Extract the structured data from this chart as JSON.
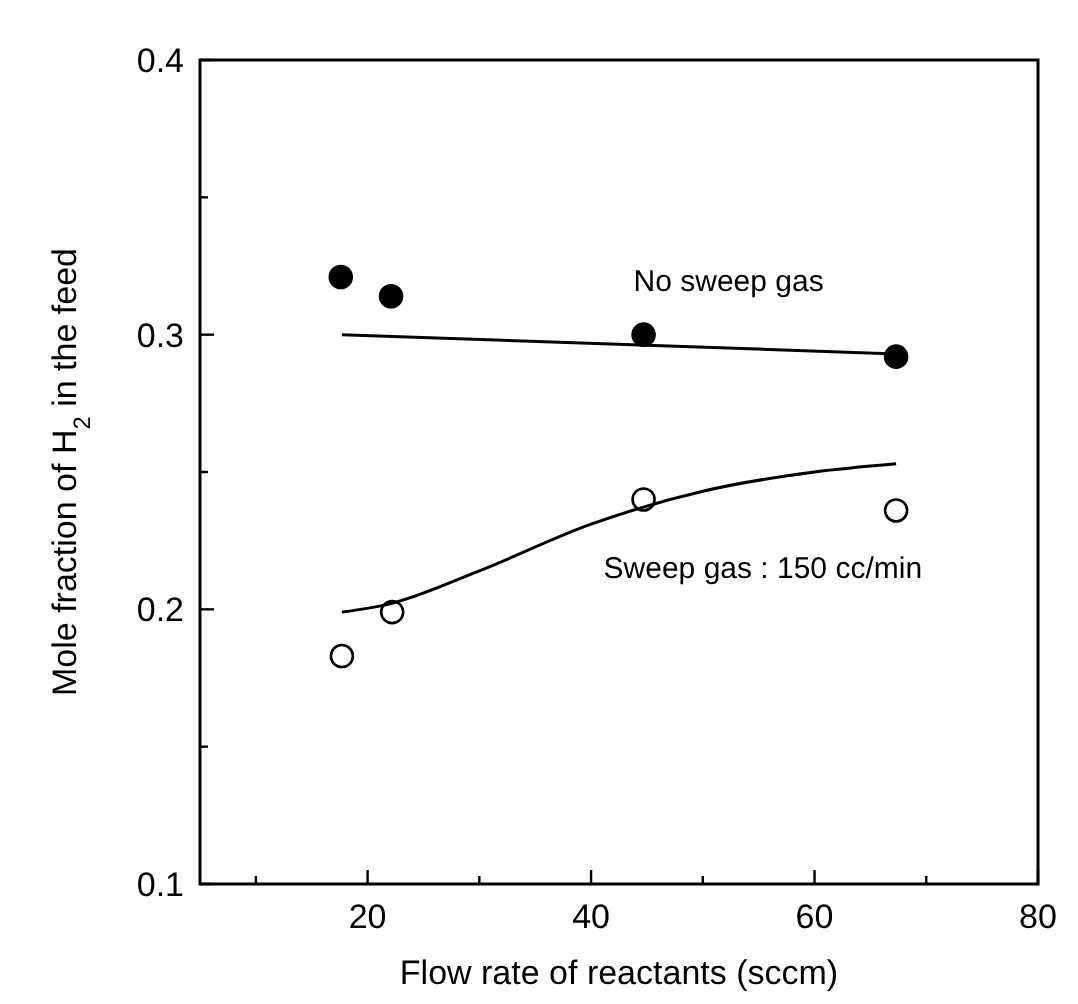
{
  "chart_data": {
    "type": "scatter",
    "xlabel": "Flow rate of reactants (sccm)",
    "ylabel": "Mole fraction of H$_{2}$ in the feed",
    "xlim": [
      5,
      80
    ],
    "xticks": [
      {
        "value": 10,
        "label": null
      },
      20,
      {
        "value": 30,
        "label": null
      },
      40,
      {
        "value": 50,
        "label": null
      },
      60,
      {
        "value": 70,
        "label": null
      },
      80
    ],
    "ylim": [
      0.1,
      0.4
    ],
    "yticks": [
      0.1,
      {
        "value": 0.15,
        "label": null
      },
      0.2,
      {
        "value": 0.25,
        "label": null
      },
      0.3,
      {
        "value": 0.35,
        "label": null
      },
      0.4
    ],
    "grid": false,
    "legend": false,
    "series": [
      {
        "marker": "circle",
        "name": "No sweep gas",
        "color": "#000000",
        "x": [
          17.6,
          22.1,
          44.7,
          67.3
        ],
        "values": [
          0.321,
          0.314,
          0.3,
          0.292
        ]
      },
      {
        "marker": "circle",
        "name": "Sweep gas : 150 cc/min",
        "color": "#ffffff",
        "x": [
          17.7,
          22.2,
          44.7,
          67.3
        ],
        "values": [
          0.183,
          0.199,
          0.24,
          0.236
        ]
      },
      {
        "type": "line",
        "color": "#000000",
        "marker": "none",
        "line_style": "solid",
        "x": [
          17.7,
          67.3
        ],
        "values": [
          0.3,
          0.293
        ]
      },
      {
        "type": "line",
        "color": "#000000",
        "marker": "none",
        "line_style": "solid",
        "x": [
          17.7,
          22,
          30,
          40,
          50,
          60,
          67.3
        ],
        "values": [
          0.199,
          0.202,
          0.214,
          0.231,
          0.243,
          0.25,
          0.253
        ]
      }
    ]
  }
}
